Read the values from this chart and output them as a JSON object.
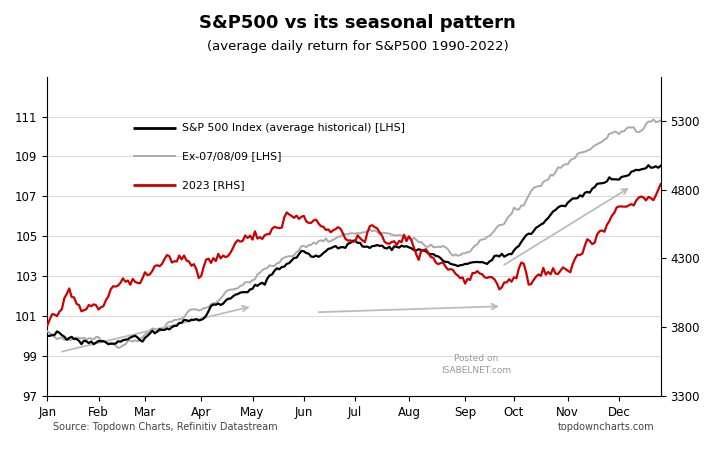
{
  "title_line1": "S&P500 vs its seasonal pattern",
  "title_line2": "(average daily return for S&P500 1990-2022)",
  "legend_labels": [
    "S&P 500 Index (average historical) [LHS]",
    "Ex-07/08/09 [LHS]",
    "2023 [RHS]"
  ],
  "line_colors": [
    "#000000",
    "#aaaaaa",
    "#cc0000"
  ],
  "lhs_ylim": [
    97,
    113
  ],
  "lhs_yticks": [
    97,
    99,
    101,
    103,
    105,
    107,
    109,
    111
  ],
  "rhs_ylim_min": 3300,
  "rhs_ylim_max": 5620,
  "rhs_yticks": [
    3300,
    3800,
    4300,
    4800,
    5300
  ],
  "source_text": "Source: Topdown Charts, Refinitiv Datastream",
  "watermark_text": "topdowncharts.com",
  "posted_on_text": "Posted on\nISABELNET.com",
  "x_months": [
    "Jan",
    "Feb",
    "Mar",
    "Apr",
    "May",
    "Jun",
    "Jul",
    "Aug",
    "Sep",
    "Oct",
    "Nov",
    "Dec"
  ],
  "background_color": "#ffffff",
  "month_days": [
    21,
    19,
    23,
    21,
    21,
    21,
    22,
    23,
    20,
    22,
    21,
    18
  ]
}
